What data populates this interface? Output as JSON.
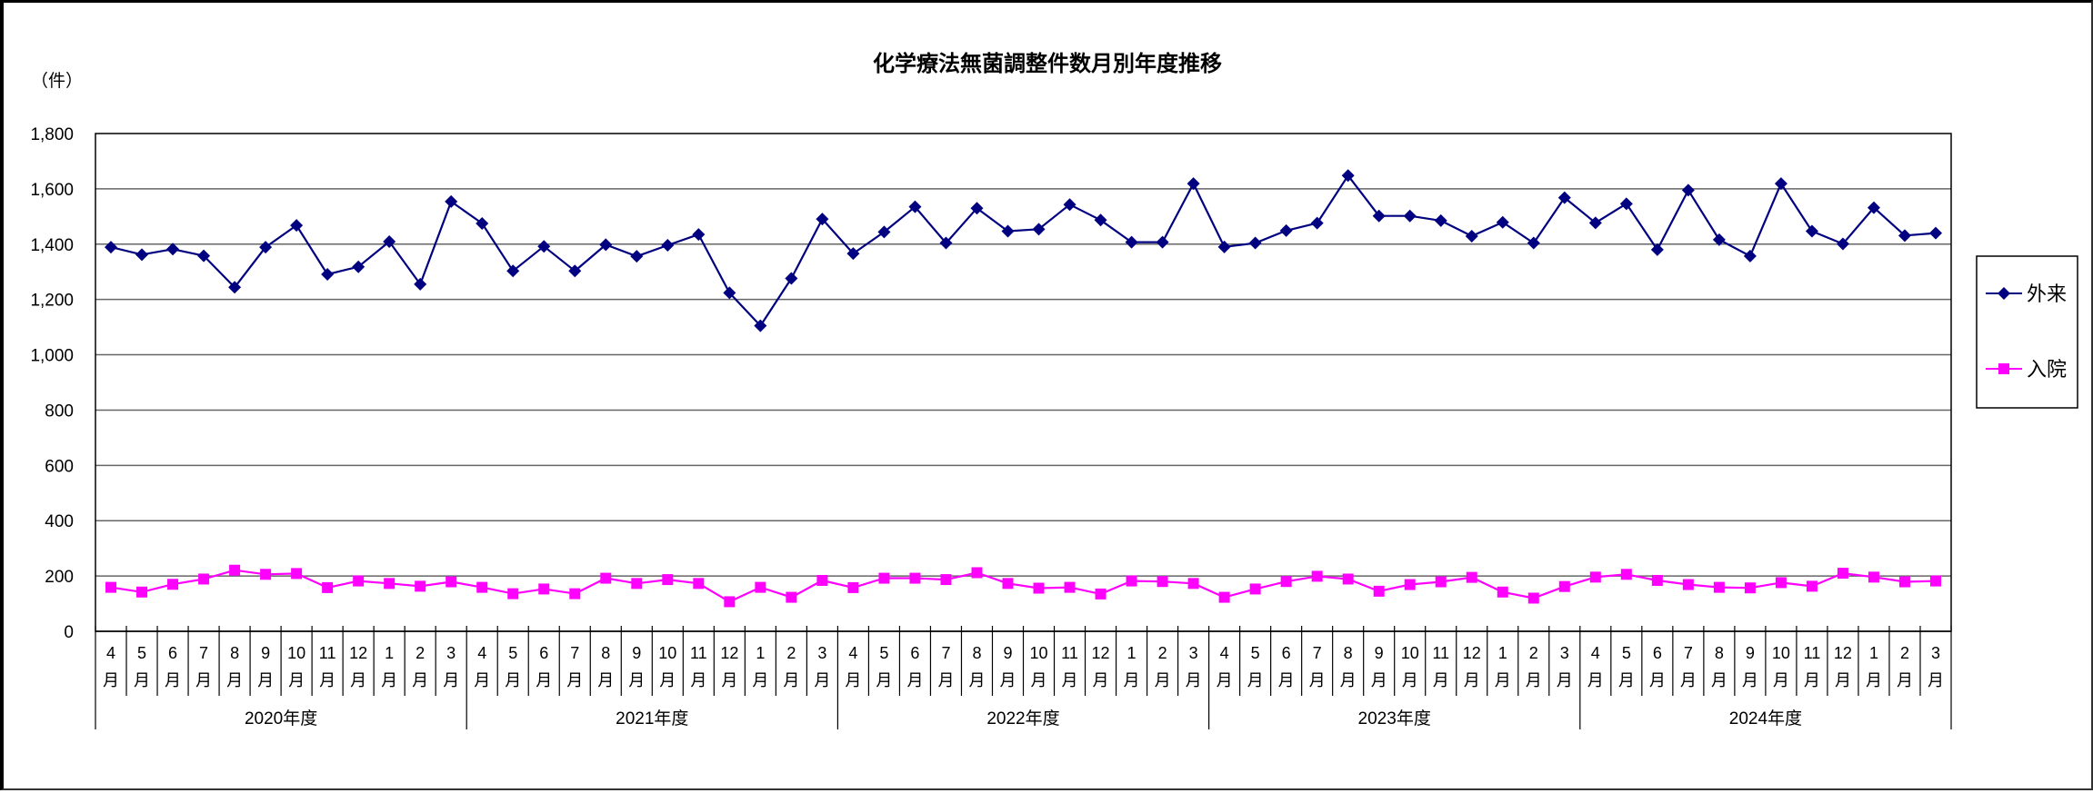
{
  "chart_data": {
    "type": "line",
    "title": "化学療法無菌調整件数月別年度推移",
    "ylabel": "（件）",
    "xlabel": "",
    "ylim": [
      0,
      1800
    ],
    "yticks": [
      0,
      200,
      400,
      600,
      800,
      1000,
      1200,
      1400,
      1600,
      1800
    ],
    "ytick_labels": [
      "0",
      "200",
      "400",
      "600",
      "800",
      "1,000",
      "1,200",
      "1,400",
      "1,600",
      "1,800"
    ],
    "grid": true,
    "legend_position": "right",
    "month_labels": [
      "4",
      "5",
      "6",
      "7",
      "8",
      "9",
      "10",
      "11",
      "12",
      "1",
      "2",
      "3"
    ],
    "month_suffix": "月",
    "fiscal_years": [
      "2020年度",
      "2021年度",
      "2022年度",
      "2023年度",
      "2024年度"
    ],
    "x": [
      "2020年度 4月",
      "2020年度 5月",
      "2020年度 6月",
      "2020年度 7月",
      "2020年度 8月",
      "2020年度 9月",
      "2020年度 10月",
      "2020年度 11月",
      "2020年度 12月",
      "2020年度 1月",
      "2020年度 2月",
      "2020年度 3月",
      "2021年度 4月",
      "2021年度 5月",
      "2021年度 6月",
      "2021年度 7月",
      "2021年度 8月",
      "2021年度 9月",
      "2021年度 10月",
      "2021年度 11月",
      "2021年度 12月",
      "2021年度 1月",
      "2021年度 2月",
      "2021年度 3月",
      "2022年度 4月",
      "2022年度 5月",
      "2022年度 6月",
      "2022年度 7月",
      "2022年度 8月",
      "2022年度 9月",
      "2022年度 10月",
      "2022年度 11月",
      "2022年度 12月",
      "2022年度 1月",
      "2022年度 2月",
      "2022年度 3月",
      "2023年度 4月",
      "2023年度 5月",
      "2023年度 6月",
      "2023年度 7月",
      "2023年度 8月",
      "2023年度 9月",
      "2023年度 10月",
      "2023年度 11月",
      "2023年度 12月",
      "2023年度 1月",
      "2023年度 2月",
      "2023年度 3月",
      "2024年度 4月",
      "2024年度 5月",
      "2024年度 6月",
      "2024年度 7月",
      "2024年度 8月",
      "2024年度 9月",
      "2024年度 10月",
      "2024年度 11月",
      "2024年度 12月",
      "2024年度 1月",
      "2024年度 2月",
      "2024年度 3月"
    ],
    "series": [
      {
        "name": "外来",
        "color": "#000080",
        "marker": "diamond",
        "values": [
          1389,
          1362,
          1382,
          1358,
          1244,
          1389,
          1468,
          1291,
          1318,
          1409,
          1255,
          1554,
          1475,
          1303,
          1392,
          1303,
          1398,
          1356,
          1396,
          1435,
          1224,
          1105,
          1276,
          1491,
          1366,
          1444,
          1535,
          1404,
          1530,
          1447,
          1454,
          1543,
          1487,
          1407,
          1407,
          1619,
          1390,
          1404,
          1449,
          1476,
          1648,
          1502,
          1502,
          1485,
          1429,
          1479,
          1404,
          1568,
          1477,
          1546,
          1380,
          1595,
          1416,
          1357,
          1619,
          1447,
          1401,
          1532,
          1431,
          1440
        ]
      },
      {
        "name": "入院",
        "color": "#FF00FF",
        "marker": "square",
        "values": [
          159,
          142,
          170,
          189,
          221,
          206,
          209,
          158,
          182,
          173,
          163,
          179,
          159,
          136,
          153,
          136,
          192,
          173,
          187,
          173,
          107,
          159,
          123,
          184,
          158,
          192,
          192,
          187,
          212,
          173,
          156,
          159,
          135,
          182,
          180,
          173,
          123,
          153,
          180,
          199,
          189,
          145,
          169,
          179,
          195,
          142,
          120,
          162,
          196,
          206,
          184,
          169,
          159,
          157,
          176,
          163,
          210,
          196,
          179,
          182
        ]
      }
    ]
  },
  "legend": {
    "items": [
      {
        "label": "外来"
      },
      {
        "label": "入院"
      }
    ]
  }
}
